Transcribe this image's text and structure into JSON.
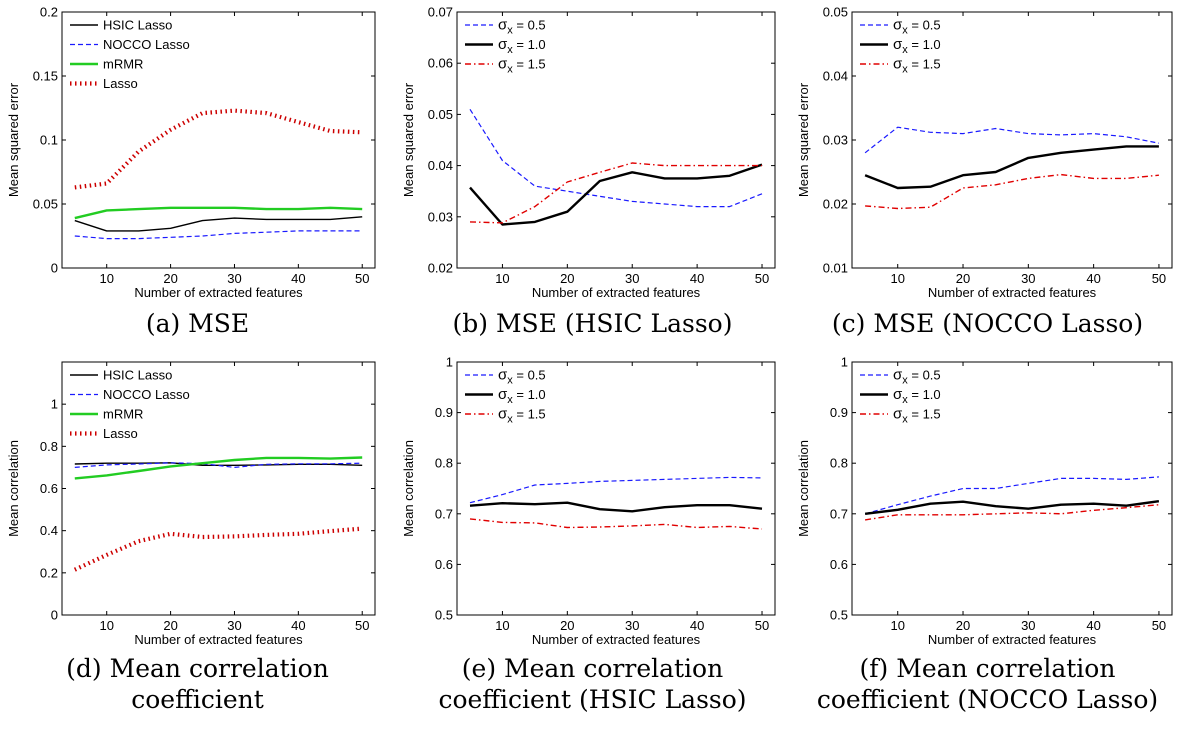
{
  "chart_data": [
    {
      "type": "line",
      "panel": "a",
      "caption": [
        "(a) MSE"
      ],
      "x": [
        5,
        10,
        15,
        20,
        25,
        30,
        35,
        40,
        45,
        50
      ],
      "xlabel": "Number of extracted features",
      "ylabel": "Mean squared error",
      "xlim": [
        3,
        52
      ],
      "ylim": [
        0,
        0.2
      ],
      "xticks": [
        10,
        20,
        30,
        40,
        50
      ],
      "yticks": [
        0,
        0.05,
        0.1,
        0.15,
        0.2
      ],
      "yticklabels": [
        "0",
        "0.05",
        "0.1",
        "0.15",
        "0.2"
      ],
      "legend_position": "top-left",
      "series": [
        {
          "name": "HSIC Lasso",
          "color": "#000000",
          "style": "solid-thin",
          "values": [
            0.037,
            0.029,
            0.029,
            0.031,
            0.037,
            0.039,
            0.038,
            0.038,
            0.038,
            0.04
          ]
        },
        {
          "name": "NOCCO Lasso",
          "color": "#1a1aff",
          "style": "dashed",
          "values": [
            0.025,
            0.023,
            0.023,
            0.024,
            0.025,
            0.027,
            0.028,
            0.029,
            0.029,
            0.029
          ]
        },
        {
          "name": "mRMR",
          "color": "#22cc22",
          "style": "solid-thick",
          "values": [
            0.039,
            0.045,
            0.046,
            0.047,
            0.047,
            0.047,
            0.046,
            0.046,
            0.047,
            0.046
          ]
        },
        {
          "name": "Lasso",
          "color": "#cc0000",
          "style": "dotted-thick",
          "values": [
            0.063,
            0.066,
            0.091,
            0.108,
            0.121,
            0.123,
            0.121,
            0.114,
            0.107,
            0.106
          ]
        }
      ]
    },
    {
      "type": "line",
      "panel": "b",
      "caption": [
        "(b) MSE (HSIC Lasso)"
      ],
      "x": [
        5,
        10,
        15,
        20,
        25,
        30,
        35,
        40,
        45,
        50
      ],
      "xlabel": "Number of extracted features",
      "ylabel": "Mean squared error",
      "xlim": [
        3,
        52
      ],
      "ylim": [
        0.02,
        0.07
      ],
      "xticks": [
        10,
        20,
        30,
        40,
        50
      ],
      "yticks": [
        0.02,
        0.03,
        0.04,
        0.05,
        0.06,
        0.07
      ],
      "yticklabels": [
        "0.02",
        "0.03",
        "0.04",
        "0.05",
        "0.06",
        "0.07"
      ],
      "legend_position": "top-left",
      "series": [
        {
          "name": "σx = 0.5",
          "color": "#1a1aff",
          "style": "dashed",
          "values": [
            0.051,
            0.041,
            0.036,
            0.035,
            0.034,
            0.033,
            0.0325,
            0.032,
            0.032,
            0.0345
          ]
        },
        {
          "name": "σx = 1.0",
          "color": "#000000",
          "style": "solid-thick",
          "values": [
            0.0357,
            0.0285,
            0.029,
            0.031,
            0.037,
            0.0387,
            0.0375,
            0.0375,
            0.038,
            0.0402
          ]
        },
        {
          "name": "σx = 1.5",
          "color": "#e00000",
          "style": "dashdot",
          "values": [
            0.029,
            0.0288,
            0.032,
            0.0368,
            0.0387,
            0.0405,
            0.04,
            0.04,
            0.04,
            0.04
          ]
        }
      ]
    },
    {
      "type": "line",
      "panel": "c",
      "caption": [
        "(c) MSE (NOCCO Lasso)"
      ],
      "x": [
        5,
        10,
        15,
        20,
        25,
        30,
        35,
        40,
        45,
        50
      ],
      "xlabel": "Number of extracted features",
      "ylabel": "Mean squared error",
      "xlim": [
        3,
        52
      ],
      "ylim": [
        0.01,
        0.05
      ],
      "xticks": [
        10,
        20,
        30,
        40,
        50
      ],
      "yticks": [
        0.01,
        0.02,
        0.03,
        0.04,
        0.05
      ],
      "yticklabels": [
        "0.01",
        "0.02",
        "0.03",
        "0.04",
        "0.05"
      ],
      "legend_position": "top-left",
      "series": [
        {
          "name": "σx = 0.5",
          "color": "#1a1aff",
          "style": "dashed",
          "values": [
            0.028,
            0.032,
            0.0312,
            0.031,
            0.0318,
            0.031,
            0.0308,
            0.031,
            0.0305,
            0.0295
          ]
        },
        {
          "name": "σx = 1.0",
          "color": "#000000",
          "style": "solid-thick",
          "values": [
            0.0245,
            0.0225,
            0.0227,
            0.0245,
            0.025,
            0.0272,
            0.028,
            0.0285,
            0.029,
            0.029
          ]
        },
        {
          "name": "σx = 1.5",
          "color": "#e00000",
          "style": "dashdot",
          "values": [
            0.0197,
            0.0193,
            0.0195,
            0.0225,
            0.023,
            0.024,
            0.0246,
            0.024,
            0.024,
            0.0245
          ]
        }
      ]
    },
    {
      "type": "line",
      "panel": "d",
      "caption": [
        "(d) Mean correlation",
        "coefficient"
      ],
      "x": [
        5,
        10,
        15,
        20,
        25,
        30,
        35,
        40,
        45,
        50
      ],
      "xlabel": "Number of extracted features",
      "ylabel": "Mean correlation",
      "xlim": [
        3,
        52
      ],
      "ylim": [
        0,
        1.2
      ],
      "xticks": [
        10,
        20,
        30,
        40,
        50
      ],
      "yticks": [
        0,
        0.2,
        0.4,
        0.6,
        0.8,
        1
      ],
      "yticklabels": [
        "0",
        "0.2",
        "0.4",
        "0.6",
        "0.8",
        "1"
      ],
      "legend_position": "top-left",
      "series": [
        {
          "name": "HSIC Lasso",
          "color": "#000000",
          "style": "solid-thin",
          "values": [
            0.716,
            0.72,
            0.72,
            0.722,
            0.71,
            0.71,
            0.712,
            0.715,
            0.715,
            0.71
          ]
        },
        {
          "name": "NOCCO Lasso",
          "color": "#1a1aff",
          "style": "dashed",
          "values": [
            0.7,
            0.712,
            0.716,
            0.722,
            0.718,
            0.7,
            0.715,
            0.717,
            0.717,
            0.72
          ]
        },
        {
          "name": "mRMR",
          "color": "#22cc22",
          "style": "solid-thick",
          "values": [
            0.648,
            0.662,
            0.683,
            0.705,
            0.72,
            0.735,
            0.745,
            0.745,
            0.742,
            0.747
          ]
        },
        {
          "name": "Lasso",
          "color": "#cc0000",
          "style": "dotted-thick",
          "values": [
            0.215,
            0.285,
            0.35,
            0.385,
            0.37,
            0.373,
            0.38,
            0.385,
            0.398,
            0.41
          ]
        }
      ]
    },
    {
      "type": "line",
      "panel": "e",
      "caption": [
        "(e) Mean correlation",
        "coefficient (HSIC Lasso)"
      ],
      "x": [
        5,
        10,
        15,
        20,
        25,
        30,
        35,
        40,
        45,
        50
      ],
      "xlabel": "Number of extracted features",
      "ylabel": "Mean correlation",
      "xlim": [
        3,
        52
      ],
      "ylim": [
        0.5,
        1
      ],
      "xticks": [
        10,
        20,
        30,
        40,
        50
      ],
      "yticks": [
        0.5,
        0.6,
        0.7,
        0.8,
        0.9,
        1
      ],
      "yticklabels": [
        "0.5",
        "0.6",
        "0.7",
        "0.8",
        "0.9",
        "1"
      ],
      "legend_position": "top-left",
      "series": [
        {
          "name": "σx = 0.5",
          "color": "#1a1aff",
          "style": "dashed",
          "values": [
            0.722,
            0.738,
            0.757,
            0.76,
            0.764,
            0.766,
            0.768,
            0.77,
            0.772,
            0.771
          ]
        },
        {
          "name": "σx = 1.0",
          "color": "#000000",
          "style": "solid-thick",
          "values": [
            0.716,
            0.721,
            0.719,
            0.722,
            0.709,
            0.705,
            0.713,
            0.717,
            0.717,
            0.71
          ]
        },
        {
          "name": "σx = 1.5",
          "color": "#e00000",
          "style": "dashdot",
          "values": [
            0.69,
            0.683,
            0.682,
            0.673,
            0.674,
            0.676,
            0.679,
            0.673,
            0.675,
            0.67
          ]
        }
      ]
    },
    {
      "type": "line",
      "panel": "f",
      "caption": [
        "(f) Mean correlation",
        "coefficient (NOCCO Lasso)"
      ],
      "x": [
        5,
        10,
        15,
        20,
        25,
        30,
        35,
        40,
        45,
        50
      ],
      "xlabel": "Number of extracted features",
      "ylabel": "Mean correlation",
      "xlim": [
        3,
        52
      ],
      "ylim": [
        0.5,
        1
      ],
      "xticks": [
        10,
        20,
        30,
        40,
        50
      ],
      "yticks": [
        0.5,
        0.6,
        0.7,
        0.8,
        0.9,
        1
      ],
      "yticklabels": [
        "0.5",
        "0.6",
        "0.7",
        "0.8",
        "0.9",
        "1"
      ],
      "legend_position": "top-left",
      "series": [
        {
          "name": "σx = 0.5",
          "color": "#1a1aff",
          "style": "dashed",
          "values": [
            0.7,
            0.718,
            0.735,
            0.75,
            0.75,
            0.76,
            0.77,
            0.77,
            0.768,
            0.773
          ]
        },
        {
          "name": "σx = 1.0",
          "color": "#000000",
          "style": "solid-thick",
          "values": [
            0.7,
            0.708,
            0.72,
            0.724,
            0.715,
            0.71,
            0.718,
            0.72,
            0.716,
            0.725
          ]
        },
        {
          "name": "σx = 1.5",
          "color": "#e00000",
          "style": "dashdot",
          "values": [
            0.688,
            0.698,
            0.698,
            0.698,
            0.7,
            0.702,
            0.7,
            0.707,
            0.712,
            0.718
          ]
        }
      ]
    }
  ]
}
